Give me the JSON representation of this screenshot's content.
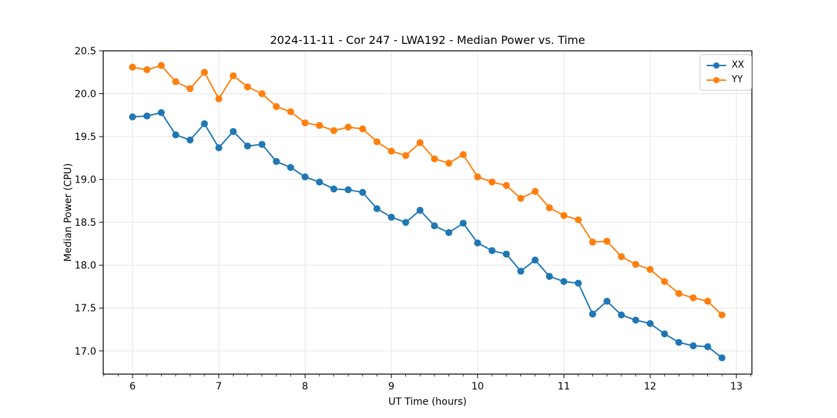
{
  "chart_data": {
    "type": "line",
    "title": "2024-11-11 - Cor 247 - LWA192 - Median Power vs. Time",
    "xlabel": "UT Time (hours)",
    "ylabel": "Median Power (CPU)",
    "xlim": [
      5.66,
      13.18
    ],
    "ylim": [
      16.73,
      20.5
    ],
    "x_ticks": [
      6,
      7,
      8,
      9,
      10,
      11,
      12,
      13
    ],
    "x_minor_tick_step": 0.166667,
    "y_ticks": [
      17.0,
      17.5,
      18.0,
      18.5,
      19.0,
      19.5,
      20.0,
      20.5
    ],
    "grid": true,
    "legend_position": "upper right",
    "x": [
      6.0,
      6.167,
      6.333,
      6.5,
      6.667,
      6.833,
      7.0,
      7.167,
      7.333,
      7.5,
      7.667,
      7.833,
      8.0,
      8.167,
      8.333,
      8.5,
      8.667,
      8.833,
      9.0,
      9.167,
      9.333,
      9.5,
      9.667,
      9.833,
      10.0,
      10.167,
      10.333,
      10.5,
      10.667,
      10.833,
      11.0,
      11.167,
      11.333,
      11.5,
      11.667,
      11.833,
      12.0,
      12.167,
      12.333,
      12.5,
      12.667,
      12.833
    ],
    "series": [
      {
        "name": "XX",
        "color": "#1f77b4",
        "values": [
          19.73,
          19.74,
          19.78,
          19.52,
          19.46,
          19.65,
          19.37,
          19.56,
          19.39,
          19.41,
          19.21,
          19.14,
          19.03,
          18.97,
          18.89,
          18.88,
          18.85,
          18.66,
          18.56,
          18.5,
          18.64,
          18.46,
          18.38,
          18.49,
          18.26,
          18.17,
          18.13,
          17.93,
          18.06,
          17.87,
          17.81,
          17.79,
          17.43,
          17.58,
          17.42,
          17.36,
          17.32,
          17.2,
          17.1,
          17.06,
          17.05,
          16.92
        ]
      },
      {
        "name": "YY",
        "color": "#ff7f0e",
        "values": [
          20.31,
          20.28,
          20.33,
          20.14,
          20.06,
          20.25,
          19.94,
          20.21,
          20.08,
          20.0,
          19.85,
          19.79,
          19.66,
          19.63,
          19.57,
          19.61,
          19.59,
          19.44,
          19.33,
          19.28,
          19.43,
          19.24,
          19.19,
          19.29,
          19.03,
          18.97,
          18.93,
          18.78,
          18.86,
          18.67,
          18.58,
          18.53,
          18.27,
          18.28,
          18.1,
          18.01,
          17.95,
          17.81,
          17.67,
          17.62,
          17.58,
          17.42
        ]
      }
    ],
    "style": {
      "grid_color": "#e5e5e5",
      "spine_color": "#000000",
      "marker_radius": 5,
      "line_width": 2
    }
  }
}
